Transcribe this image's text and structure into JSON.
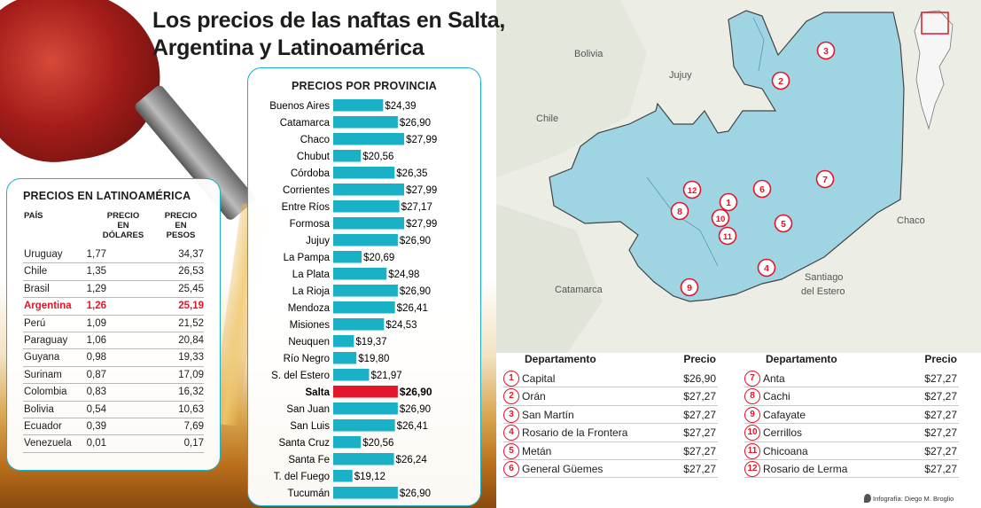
{
  "title": {
    "line1": "Los precios de las naftas en Salta,",
    "line2": "Argentina y Latinoamérica"
  },
  "latam": {
    "title": "PRECIOS EN LATINOAMÉRICA",
    "col_country": "PAÍS",
    "col_usd": [
      "PRECIO",
      "EN",
      "DÓLARES"
    ],
    "col_ars": [
      "PRECIO",
      "EN",
      "PESOS"
    ],
    "rows": [
      {
        "country": "Uruguay",
        "usd": "1,77",
        "ars": "34,37"
      },
      {
        "country": "Chile",
        "usd": "1,35",
        "ars": "26,53"
      },
      {
        "country": "Brasil",
        "usd": "1,29",
        "ars": "25,45"
      },
      {
        "country": "Argentina",
        "usd": "1,26",
        "ars": "25,19",
        "highlight": true
      },
      {
        "country": "Perú",
        "usd": "1,09",
        "ars": "21,52"
      },
      {
        "country": "Paraguay",
        "usd": "1,06",
        "ars": "20,84"
      },
      {
        "country": "Guyana",
        "usd": "0,98",
        "ars": "19,33"
      },
      {
        "country": "Surinam",
        "usd": "0,87",
        "ars": "17,09"
      },
      {
        "country": "Colombia",
        "usd": "0,83",
        "ars": "16,32"
      },
      {
        "country": "Bolivia",
        "usd": "0,54",
        "ars": "10,63"
      },
      {
        "country": "Ecuador",
        "usd": "0,39",
        "ars": "7,69"
      },
      {
        "country": "Venezuela",
        "usd": "0,01",
        "ars": "0,17"
      }
    ]
  },
  "chart_data": {
    "type": "bar",
    "orientation": "horizontal",
    "title": "PRECIOS POR PROVINCIA",
    "categories": [
      "Buenos Aires",
      "Catamarca",
      "Chaco",
      "Chubut",
      "Córdoba",
      "Corrientes",
      "Entre Ríos",
      "Formosa",
      "Jujuy",
      "La Pampa",
      "La Plata",
      "La Rioja",
      "Mendoza",
      "Misiones",
      "Neuquen",
      "Río Negro",
      "S. del Estero",
      "Salta",
      "San Juan",
      "San Luis",
      "Santa Cruz",
      "Santa Fe",
      "T. del Fuego",
      "Tucumán"
    ],
    "values": [
      24.39,
      26.9,
      27.99,
      20.56,
      26.35,
      27.99,
      27.17,
      27.99,
      26.9,
      20.69,
      24.98,
      26.9,
      26.41,
      24.53,
      19.37,
      19.8,
      21.97,
      26.9,
      26.9,
      26.41,
      20.56,
      26.24,
      19.12,
      26.9
    ],
    "labels": [
      "$24,39",
      "$26,90",
      "$27,99",
      "$20,56",
      "$26,35",
      "$27,99",
      "$27,17",
      "$27,99",
      "$26,90",
      "$20,69",
      "$24,98",
      "$26,90",
      "$26,41",
      "$24,53",
      "$19,37",
      "$19,80",
      "$21,97",
      "$26,90",
      "$26,90",
      "$26,41",
      "$20,56",
      "$26,24",
      "$19,12",
      "$26,90"
    ],
    "highlight": "Salta",
    "bar_color": "#1ab0c6",
    "highlight_color": "#e2162a"
  },
  "map": {
    "labels": {
      "bolivia": "Bolivia",
      "jujuy": "Jujuy",
      "chile": "Chile",
      "chaco": "Chaco",
      "catamarca": "Catamarca",
      "santiago_1": "Santiago",
      "santiago_2": "del Estero"
    },
    "markers": [
      "1",
      "2",
      "3",
      "4",
      "5",
      "6",
      "7",
      "8",
      "9",
      "10",
      "11",
      "12"
    ],
    "region_color": "#8fcfe0",
    "marker_color": "#e2162a"
  },
  "departments": {
    "col_name": "Departamento",
    "col_price": "Precio",
    "left": [
      {
        "num": "1",
        "name": "Capital",
        "price": "$26,90"
      },
      {
        "num": "2",
        "name": "Orán",
        "price": "$27,27"
      },
      {
        "num": "3",
        "name": "San Martín",
        "price": "$27,27"
      },
      {
        "num": "4",
        "name": "Rosario de la Frontera",
        "price": "$27,27"
      },
      {
        "num": "5",
        "name": "Metán",
        "price": "$27,27"
      },
      {
        "num": "6",
        "name": "General Güemes",
        "price": "$27,27"
      }
    ],
    "right": [
      {
        "num": "7",
        "name": "Anta",
        "price": "$27,27"
      },
      {
        "num": "8",
        "name": "Cachi",
        "price": "$27,27"
      },
      {
        "num": "9",
        "name": "Cafayate",
        "price": "$27,27"
      },
      {
        "num": "10",
        "name": "Cerrillos",
        "price": "$27,27"
      },
      {
        "num": "11",
        "name": "Chicoana",
        "price": "$27,27"
      },
      {
        "num": "12",
        "name": "Rosario de Lerma",
        "price": "$27,27"
      }
    ]
  },
  "credit": "Infografía: Diego M. Broglio"
}
